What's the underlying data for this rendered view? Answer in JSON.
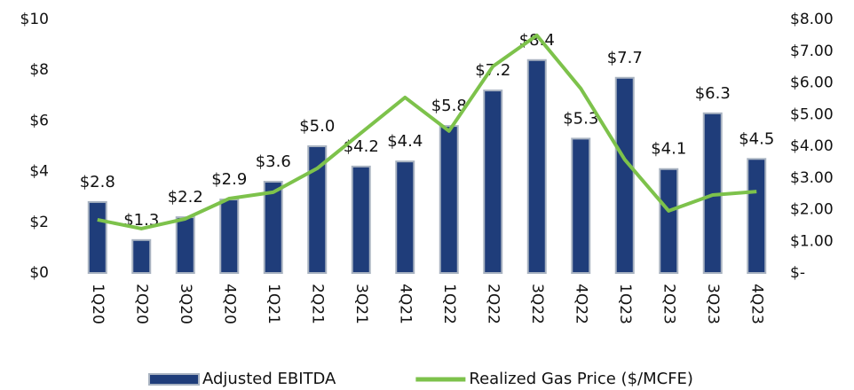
{
  "chart_data": {
    "type": "bar",
    "categories": [
      "1Q20",
      "2Q20",
      "3Q20",
      "4Q20",
      "1Q21",
      "2Q21",
      "3Q21",
      "4Q21",
      "1Q22",
      "2Q22",
      "3Q22",
      "4Q22",
      "1Q23",
      "2Q23",
      "3Q23",
      "4Q23"
    ],
    "series": [
      {
        "name": "Adjusted EBITDA",
        "type": "bar",
        "color": "#1f3d7a",
        "border": "#a9b3c1",
        "values": [
          2.8,
          1.3,
          2.2,
          2.9,
          3.6,
          5.0,
          4.2,
          4.4,
          5.8,
          7.2,
          8.4,
          5.3,
          7.7,
          4.1,
          6.3,
          4.5
        ],
        "value_labels": [
          "$2.8",
          "$1.3",
          "$2.2",
          "$2.9",
          "$3.6",
          "$5.0",
          "$4.2",
          "$4.4",
          "$5.8",
          "$7.2",
          "$8.4",
          "$5.3",
          "$7.7",
          "$4.1",
          "$6.3",
          "$4.5"
        ]
      },
      {
        "name": "Realized Gas Price ($/MCFE)",
        "type": "line",
        "axis": "y2",
        "color": "#7dc24b",
        "values": [
          1.68,
          1.4,
          1.71,
          2.35,
          2.55,
          3.3,
          4.42,
          5.54,
          4.48,
          6.52,
          7.5,
          5.82,
          3.58,
          1.96,
          2.46,
          2.57
        ]
      }
    ],
    "ylim": [
      0,
      10
    ],
    "yticks": [
      {
        "value": 0,
        "label": "$0"
      },
      {
        "value": 2,
        "label": "$2"
      },
      {
        "value": 4,
        "label": "$4"
      },
      {
        "value": 6,
        "label": "$6"
      },
      {
        "value": 8,
        "label": "$8"
      },
      {
        "value": 10,
        "label": "$10"
      }
    ],
    "y2lim": [
      0,
      8
    ],
    "y2ticks": [
      {
        "value": 0,
        "label": "$-"
      },
      {
        "value": 1,
        "label": "$1.00"
      },
      {
        "value": 2,
        "label": "$2.00"
      },
      {
        "value": 3,
        "label": "$3.00"
      },
      {
        "value": 4,
        "label": "$4.00"
      },
      {
        "value": 5,
        "label": "$5.00"
      },
      {
        "value": 6,
        "label": "$6.00"
      },
      {
        "value": 7,
        "label": "$7.00"
      },
      {
        "value": 8,
        "label": "$8.00"
      }
    ],
    "legend": "bottom"
  }
}
